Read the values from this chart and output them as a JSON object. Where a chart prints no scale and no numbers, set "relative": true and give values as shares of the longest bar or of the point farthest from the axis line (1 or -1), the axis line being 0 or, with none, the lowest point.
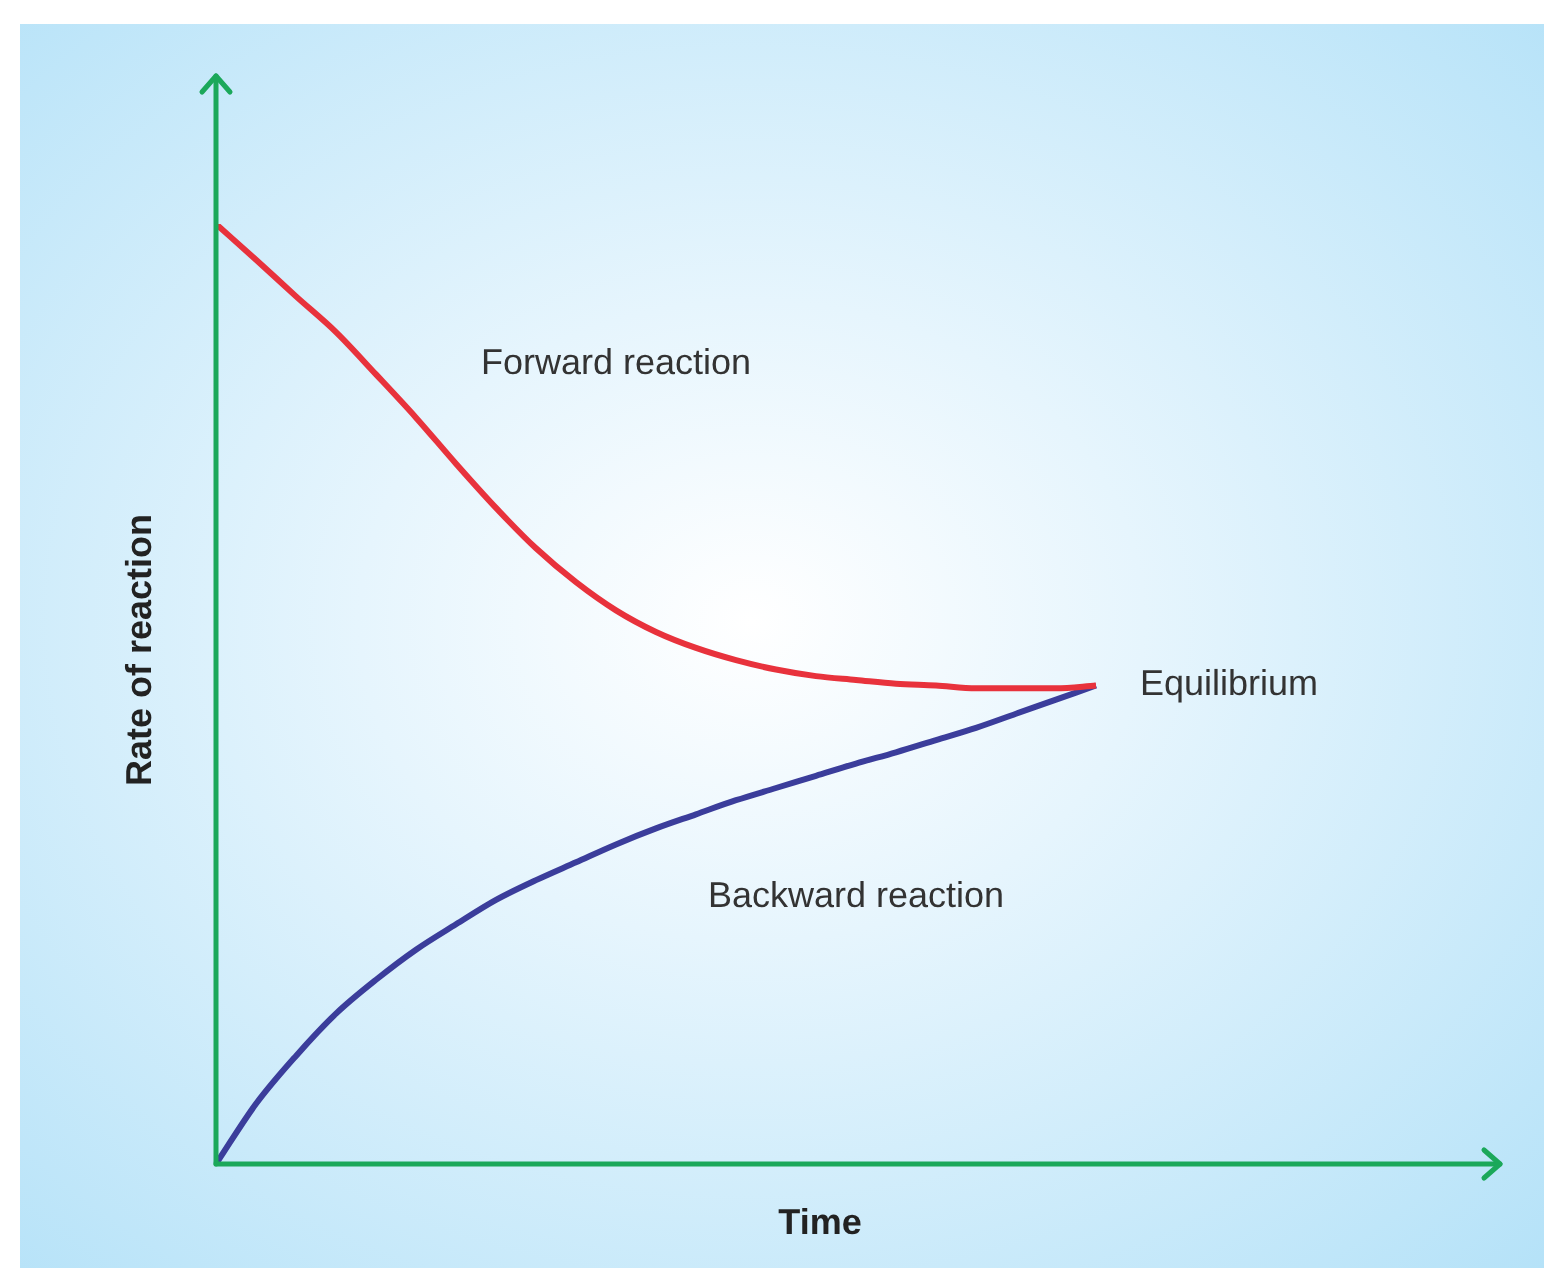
{
  "chart_data": {
    "type": "line",
    "xlabel": "Time",
    "ylabel": "Rate of reaction",
    "relative": true,
    "categories": [
      null,
      null,
      null,
      null,
      null,
      null,
      null,
      null,
      null,
      null,
      null,
      null,
      null,
      null,
      null,
      null,
      null,
      null,
      null,
      null,
      null,
      null,
      null,
      null,
      null,
      null,
      null,
      null,
      null,
      null,
      null,
      null,
      null
    ],
    "series": [
      {
        "name": "Forward reaction",
        "color": "#e8323c",
        "values": [
          1.0,
          0.962,
          0.923,
          0.885,
          0.84,
          0.794,
          0.745,
          0.698,
          0.655,
          0.619,
          0.589,
          0.566,
          0.549,
          0.536,
          0.526,
          0.519,
          0.515,
          0.511,
          0.509,
          0.506,
          0.506,
          0.506,
          0.509,
          null,
          null,
          null,
          null,
          null,
          null,
          null,
          null,
          null,
          null
        ]
      },
      {
        "name": "Backward reaction",
        "color": "#3b3d9b",
        "values": [
          0,
          0.064,
          0.115,
          0.16,
          0.196,
          0.228,
          0.255,
          0.281,
          0.302,
          0.321,
          0.34,
          0.357,
          0.372,
          0.387,
          0.4,
          0.413,
          0.426,
          0.438,
          0.451,
          0.464,
          0.479,
          0.494,
          0.509,
          null,
          null,
          null,
          null,
          null,
          null,
          null,
          null,
          null,
          null
        ]
      }
    ],
    "annotations": [
      "Equilibrium"
    ]
  }
}
